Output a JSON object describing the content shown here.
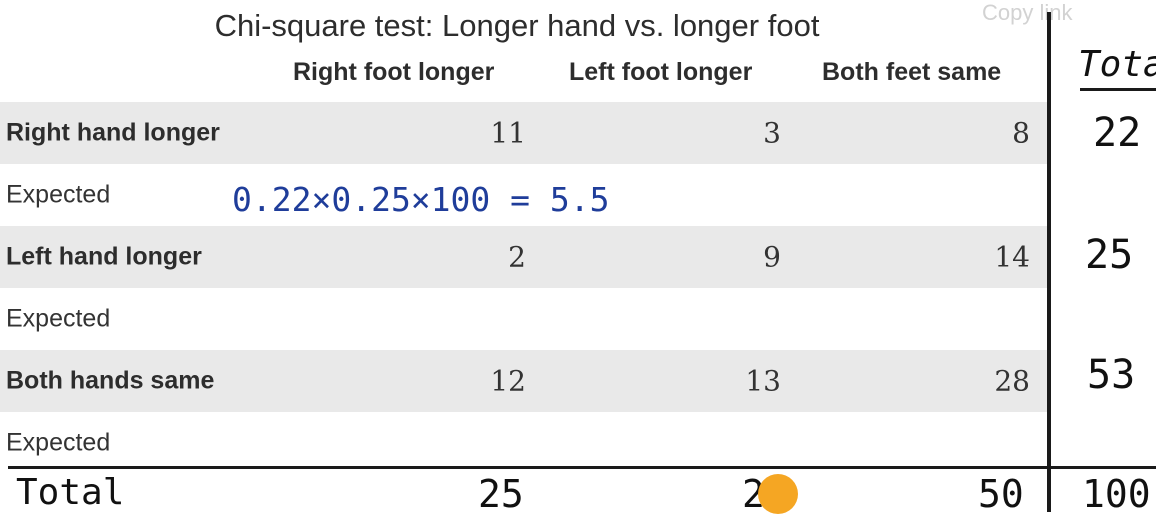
{
  "title": "Chi-square test: Longer hand vs. longer foot",
  "overlay": {
    "copy_link": "Copy link"
  },
  "columns": {
    "c1": "Right foot longer",
    "c2": "Left foot longer",
    "c3": "Both feet same"
  },
  "rows": [
    {
      "label": "Right hand longer",
      "values": [
        "11",
        "3",
        "8"
      ],
      "total": "22"
    },
    {
      "label": "Expected"
    },
    {
      "label": "Left hand longer",
      "values": [
        "2",
        "9",
        "14"
      ],
      "total": "25"
    },
    {
      "label": "Expected"
    },
    {
      "label": "Both hands same",
      "values": [
        "12",
        "13",
        "28"
      ],
      "total": "53"
    },
    {
      "label": "Expected"
    }
  ],
  "annotations": {
    "total_header": "Total",
    "expected_calc": "0.22×0.25×100 = 5.5",
    "total_row_label": "Total",
    "column_totals": [
      "25",
      "25",
      "50"
    ],
    "grand_total": "100"
  },
  "colors": {
    "row_shade": "#e9e9e9",
    "handwriting_blue": "#1f3d9a",
    "cursor": "#f5a623"
  }
}
